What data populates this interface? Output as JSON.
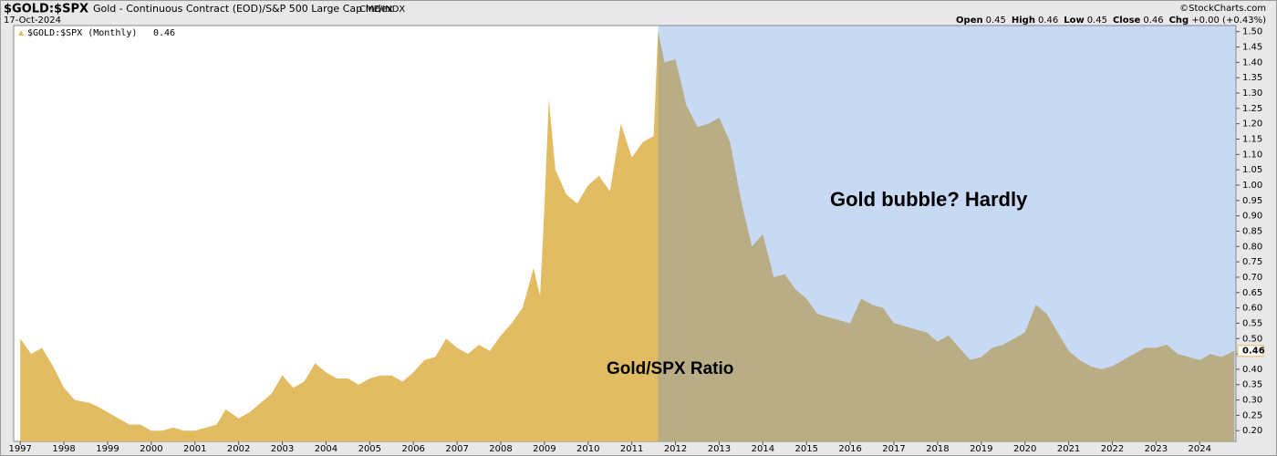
{
  "header": {
    "symbol": "$GOLD:$SPX",
    "description": "Gold - Continuous Contract (EOD)/S&P 500 Large Cap Index",
    "exchange": "CME/INDX",
    "date": "17-Oct-2024",
    "credit": "©StockCharts.com",
    "quote": [
      {
        "label": "Open",
        "value": 0.45
      },
      {
        "label": "High",
        "value": 0.46
      },
      {
        "label": "Low",
        "value": 0.45
      },
      {
        "label": "Close",
        "value": 0.46
      },
      {
        "label": "Chg",
        "value": "+0.00 (+0.43%)"
      }
    ]
  },
  "chart_data": {
    "type": "area",
    "annotations": [
      "Gold bubble? Hardly",
      "Gold/SPX Ratio"
    ],
    "x": [
      1997.0,
      1997.25,
      1997.5,
      1997.75,
      1998.0,
      1998.25,
      1998.6,
      1998.75,
      1999.0,
      1999.25,
      1999.5,
      1999.75,
      2000.0,
      2000.25,
      2000.5,
      2000.75,
      2001.0,
      2001.25,
      2001.5,
      2001.7,
      2002.0,
      2002.25,
      2002.5,
      2002.75,
      2003.0,
      2003.25,
      2003.5,
      2003.75,
      2004.0,
      2004.25,
      2004.5,
      2004.75,
      2005.0,
      2005.25,
      2005.5,
      2005.75,
      2006.0,
      2006.25,
      2006.5,
      2006.75,
      2007.0,
      2007.25,
      2007.5,
      2007.75,
      2008.0,
      2008.25,
      2008.5,
      2008.75,
      2008.9,
      2009.0,
      2009.1,
      2009.25,
      2009.5,
      2009.75,
      2010.0,
      2010.25,
      2010.5,
      2010.75,
      2011.0,
      2011.25,
      2011.5,
      2011.6,
      2011.75,
      2012.0,
      2012.25,
      2012.5,
      2012.75,
      2013.0,
      2013.25,
      2013.5,
      2013.75,
      2014.0,
      2014.25,
      2014.5,
      2014.75,
      2015.0,
      2015.25,
      2015.5,
      2015.75,
      2016.0,
      2016.25,
      2016.5,
      2016.75,
      2017.0,
      2017.25,
      2017.5,
      2017.75,
      2018.0,
      2018.25,
      2018.5,
      2018.75,
      2019.0,
      2019.25,
      2019.5,
      2019.75,
      2020.0,
      2020.25,
      2020.5,
      2020.75,
      2021.0,
      2021.25,
      2021.5,
      2021.75,
      2022.0,
      2022.25,
      2022.5,
      2022.75,
      2023.0,
      2023.25,
      2023.5,
      2023.75,
      2024.0,
      2024.25,
      2024.5,
      2024.79
    ],
    "series": [
      {
        "name": "$GOLD:$SPX (Monthly)",
        "last_value": 0.46,
        "color": "#e2bc62",
        "shaded_color": "#b8ad85",
        "values": [
          0.5,
          0.45,
          0.47,
          0.41,
          0.34,
          0.3,
          0.29,
          0.28,
          0.26,
          0.24,
          0.22,
          0.22,
          0.2,
          0.2,
          0.21,
          0.2,
          0.2,
          0.21,
          0.22,
          0.27,
          0.24,
          0.26,
          0.29,
          0.32,
          0.38,
          0.34,
          0.36,
          0.42,
          0.39,
          0.37,
          0.37,
          0.35,
          0.37,
          0.38,
          0.38,
          0.36,
          0.39,
          0.43,
          0.44,
          0.5,
          0.47,
          0.45,
          0.48,
          0.46,
          0.51,
          0.55,
          0.6,
          0.73,
          0.64,
          0.93,
          1.28,
          1.05,
          0.97,
          0.94,
          1.0,
          1.03,
          0.98,
          1.2,
          1.09,
          1.14,
          1.16,
          1.5,
          1.4,
          1.41,
          1.26,
          1.19,
          1.2,
          1.22,
          1.14,
          0.95,
          0.8,
          0.84,
          0.7,
          0.71,
          0.66,
          0.63,
          0.58,
          0.57,
          0.56,
          0.55,
          0.63,
          0.61,
          0.6,
          0.55,
          0.54,
          0.53,
          0.52,
          0.49,
          0.51,
          0.47,
          0.43,
          0.44,
          0.47,
          0.48,
          0.5,
          0.52,
          0.61,
          0.58,
          0.52,
          0.46,
          0.43,
          0.41,
          0.4,
          0.41,
          0.43,
          0.45,
          0.47,
          0.47,
          0.48,
          0.45,
          0.44,
          0.43,
          0.45,
          0.44,
          0.46
        ]
      }
    ],
    "shade_from": 2011.6,
    "shade_color": "#c8d9f3",
    "xlim": [
      1996.85,
      2024.83
    ],
    "xticks": [
      1997,
      1998,
      1999,
      2000,
      2001,
      2002,
      2003,
      2004,
      2005,
      2006,
      2007,
      2008,
      2009,
      2010,
      2011,
      2012,
      2013,
      2014,
      2015,
      2016,
      2017,
      2018,
      2019,
      2020,
      2021,
      2022,
      2023,
      2024
    ],
    "ylim": [
      0.165,
      1.52
    ],
    "yticks": [
      {
        "value": 0.2,
        "label": "0.20"
      },
      0.25,
      {
        "value": 0.3,
        "label": "0.30"
      },
      0.35,
      {
        "value": 0.4,
        "label": "0.40"
      },
      0.45,
      {
        "value": 0.5,
        "label": "0.50"
      },
      0.55,
      {
        "value": 0.6,
        "label": "0.60"
      },
      0.65,
      {
        "value": 0.7,
        "label": "0.70"
      },
      0.75,
      {
        "value": 0.8,
        "label": "0.80"
      },
      0.85,
      {
        "value": 0.9,
        "label": "0.90"
      },
      0.95,
      {
        "value": 1.0,
        "label": "1.00"
      },
      1.05,
      {
        "value": 1.1,
        "label": "1.10"
      },
      1.15,
      {
        "value": 1.2,
        "label": "1.20"
      },
      1.25,
      {
        "value": 1.3,
        "label": "1.30"
      },
      1.35,
      {
        "value": 1.4,
        "label": "1.40"
      },
      1.45,
      {
        "value": 1.5,
        "label": "1.50"
      }
    ]
  }
}
